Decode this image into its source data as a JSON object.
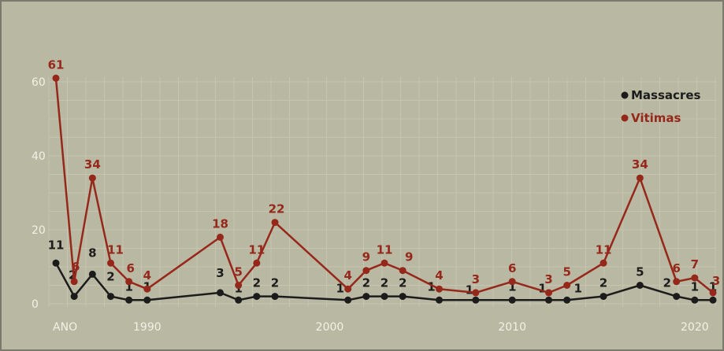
{
  "chart_data": {
    "type": "line",
    "title": "",
    "xlabel": "ANO",
    "ylabel": "",
    "x": [
      1985,
      1986,
      1987,
      1988,
      1989,
      1990,
      1994,
      1995,
      1996,
      1997,
      2001,
      2002,
      2003,
      2004,
      2006,
      2008,
      2010,
      2012,
      2013,
      2015,
      2017,
      2019,
      2020,
      2021
    ],
    "xlim": [
      1984.5,
      2021.5
    ],
    "ylim": [
      0,
      65
    ],
    "xticks": [
      "ANO",
      "1990",
      "2000",
      "2010",
      "2020"
    ],
    "xtick_values": [
      1985.5,
      1990,
      2000,
      2010,
      2020
    ],
    "yticks": [
      "0",
      "20",
      "40",
      "60"
    ],
    "ytick_values": [
      0,
      20,
      40,
      60
    ],
    "grid": true,
    "legend_position": "top-right",
    "series": [
      {
        "name": "Massacres",
        "color": "#1c1c1c",
        "values": [
          11,
          2,
          8,
          2,
          1,
          1,
          3,
          1,
          2,
          2,
          1,
          2,
          2,
          2,
          1,
          1,
          1,
          1,
          1,
          2,
          5,
          2,
          1,
          1
        ],
        "labels": [
          "11",
          "2",
          "8",
          "2",
          "1",
          "1",
          "3",
          "1",
          "2",
          "2",
          "1",
          "2",
          "2",
          "2",
          "1",
          "1",
          "1",
          "1",
          "1",
          "2",
          "5",
          "2",
          "1",
          "1"
        ]
      },
      {
        "name": "Vitimas",
        "color": "#96281b",
        "values": [
          61,
          6,
          34,
          11,
          6,
          4,
          18,
          5,
          11,
          22,
          4,
          9,
          11,
          9,
          4,
          3,
          6,
          3,
          5,
          11,
          34,
          6,
          7,
          3
        ],
        "labels": [
          "61",
          "6",
          "34",
          "11",
          "6",
          "4",
          "18",
          "5",
          "11",
          "22",
          "4",
          "9",
          "11",
          "9",
          "4",
          "3",
          "6",
          "3",
          "5",
          "11",
          "34",
          "6",
          "7",
          "3"
        ]
      }
    ]
  }
}
